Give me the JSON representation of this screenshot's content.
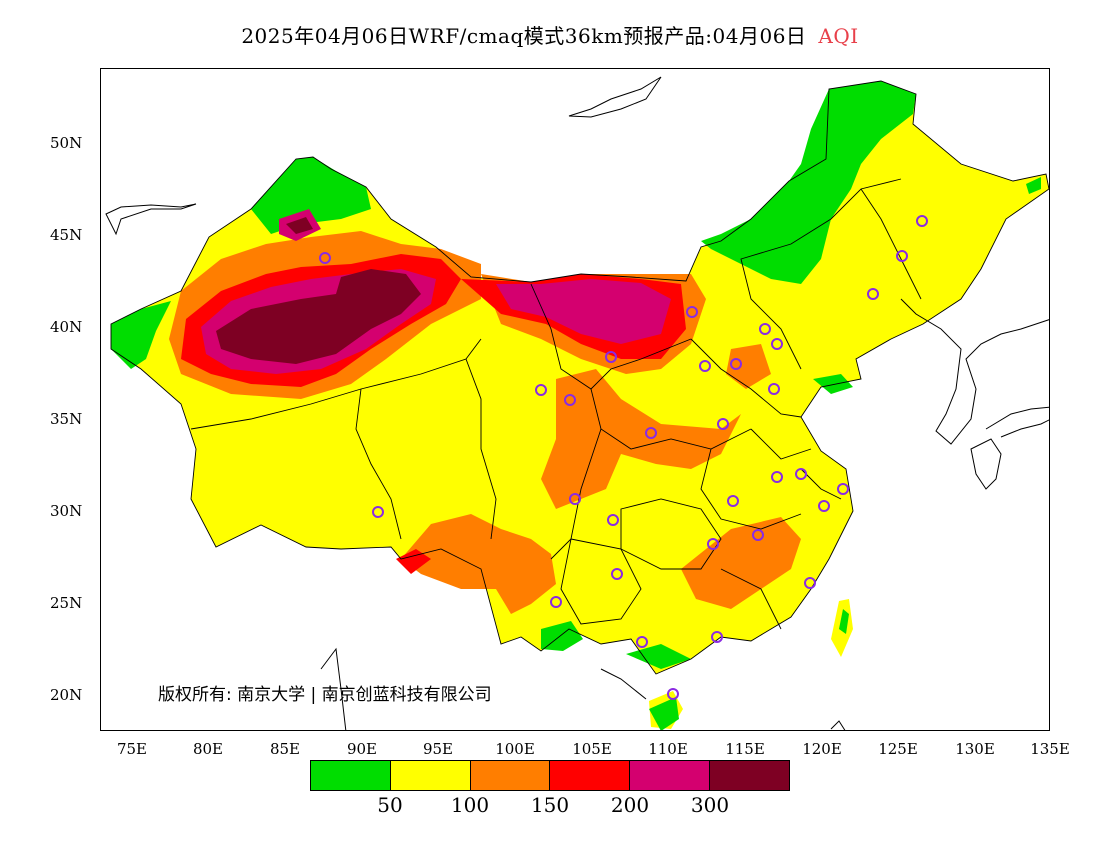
{
  "title": {
    "main": "2025年04月06日WRF/cmaq模式36km预报产品:04月06日",
    "variable": "AQI"
  },
  "axes": {
    "lat_labels": [
      "50N",
      "45N",
      "40N",
      "35N",
      "30N",
      "25N",
      "20N"
    ],
    "lon_labels": [
      "75E",
      "80E",
      "85E",
      "90E",
      "95E",
      "100E",
      "105E",
      "110E",
      "115E",
      "120E",
      "125E",
      "130E",
      "135E"
    ]
  },
  "copyright": "版权所有: 南京大学 | 南京创蓝科技有限公司",
  "legend": {
    "colors": [
      "#00dd00",
      "#ffff00",
      "#ff7e00",
      "#ff0000",
      "#d4006f",
      "#7e0023"
    ],
    "labels": [
      "50",
      "100",
      "150",
      "200",
      "300"
    ]
  },
  "map": {
    "extent": {
      "lon": [
        73,
        135
      ],
      "lat": [
        18,
        54
      ]
    },
    "colors": {
      "good": "#00dd00",
      "moderate": "#ffff00",
      "sensitive": "#ff7e00",
      "unhealthy": "#ff0000",
      "very_unhealthy": "#d4006f",
      "hazardous": "#7e0023",
      "station": "#8a2be2"
    }
  }
}
